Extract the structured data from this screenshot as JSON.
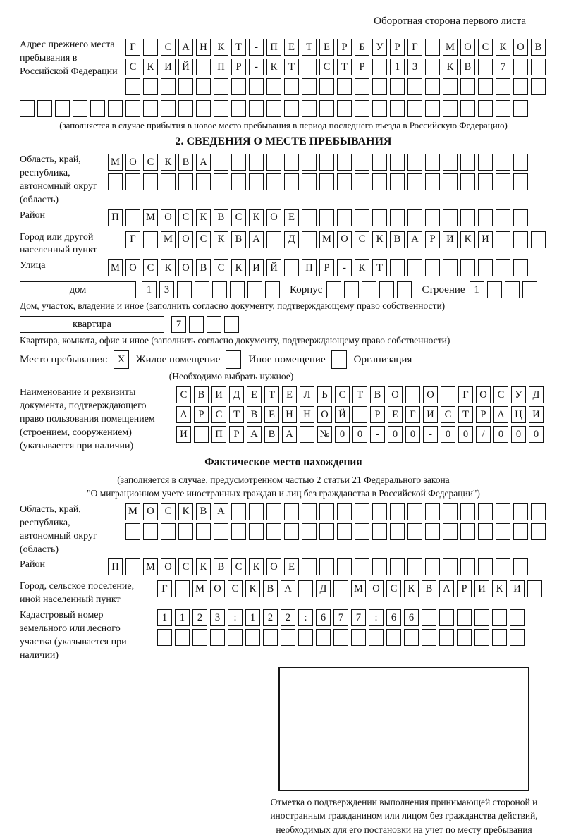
{
  "header": {
    "note": "Оборотная сторона первого листа"
  },
  "prev_address": {
    "label": "Адрес прежнего места пребывания в Российской Федерации",
    "row1": {
      "cells": "Г САНКТ-ПЕТЕРБУРГ МОСКОВ",
      "len": 24
    },
    "row2": {
      "cells": "СКИЙ ПР-КТ СТР 13 КВ 7",
      "len": 24
    },
    "row3": {
      "cells": "",
      "len": 24
    },
    "row4": {
      "cells": "",
      "len": 29
    },
    "caption": "(заполняется в случае прибытия в новое место пребывания в период последнего въезда в Российскую Федерацию)"
  },
  "section2": {
    "title": "2. СВЕДЕНИЯ О МЕСТЕ ПРЕБЫВАНИЯ",
    "oblast": {
      "label": "Область, край, республика, автономный округ (область)",
      "row1": {
        "cells": "МОСКВА",
        "len": 24
      },
      "row2": {
        "cells": "",
        "len": 24
      }
    },
    "raion": {
      "label": "Район",
      "row": {
        "cells": "П МОСКВСКОЕ",
        "len": 24
      }
    },
    "gorod": {
      "label": "Город или другой населенный пункт",
      "row": {
        "cells": "Г МОСКВА Д МОСКВАРИКИ",
        "len": 24
      }
    },
    "ulitsa": {
      "label": "Улица",
      "row": {
        "cells": "МОСКОВСКИЙ ПР-КТ",
        "len": 24
      }
    },
    "dom": {
      "label": "дом",
      "row": {
        "cells": "13",
        "len": 8
      },
      "korpus_label": "Корпус",
      "korpus_row": {
        "cells": "",
        "len": 5
      },
      "stroenie_label": "Строение",
      "stroenie_row": {
        "cells": "1",
        "len": 4
      },
      "caption": "Дом, участок, владение и иное (заполнить согласно документу, подтверждающему право собственности)"
    },
    "kvartira": {
      "label": "квартира",
      "row": {
        "cells": "7",
        "len": 4
      },
      "caption": "Квартира, комната, офис и иное (заполнить согласно документу, подтверждающему право собственности)"
    },
    "mesto": {
      "label": "Место пребывания:",
      "options": [
        {
          "checked": "X",
          "label": "Жилое помещение"
        },
        {
          "checked": "",
          "label": "Иное помещение"
        },
        {
          "checked": "",
          "label": "Организация"
        }
      ],
      "note": "(Необходимо выбрать нужное)"
    },
    "doc": {
      "label": "Наименование и реквизиты документа, подтверждающего право пользования помещением (строением, сооружением) (указывается при наличии)",
      "row1": {
        "cells": "СВИДЕТЕЛЬСТВО О ГОСУД",
        "len": 21
      },
      "row2": {
        "cells": "АРСТВЕННОЙ РЕГИСТРАЦИ",
        "len": 21
      },
      "row3": {
        "cells": "И ПРАВА №00-00-00/000",
        "len": 21
      }
    }
  },
  "fact": {
    "title": "Фактическое место нахождения",
    "note1": "(заполняется в случае, предусмотренном частью 2 статьи 21 Федерального закона",
    "note2": "\"О миграционном учете иностранных граждан и лиц без гражданства в Российской Федерации\")",
    "oblast": {
      "label": "Область, край, республика, автономный округ (область)",
      "row1": {
        "cells": "МОСКВА",
        "len": 24
      },
      "row2": {
        "cells": "",
        "len": 24
      }
    },
    "raion": {
      "label": "Район",
      "row": {
        "cells": "П МОСКВСКОЕ",
        "len": 24
      }
    },
    "gorod": {
      "label": "Город, сельское поселение, иной населенный пункт",
      "row": {
        "cells": "Г МОСКВА Д МОСКВАРИКИ",
        "len": 22
      }
    },
    "kadastr": {
      "label": "Кадастровый номер земельного или лесного участка (указывается при наличии)",
      "row1": {
        "cells": "1123:122:677:66",
        "len": 21
      },
      "row2": {
        "cells": "",
        "len": 21
      }
    },
    "stamp_note": "Отметка о подтверждении выполнения принимающей стороной и иностранным гражданином или лицом без гражданства действий, необходимых для его постановки на учет по месту пребывания"
  }
}
